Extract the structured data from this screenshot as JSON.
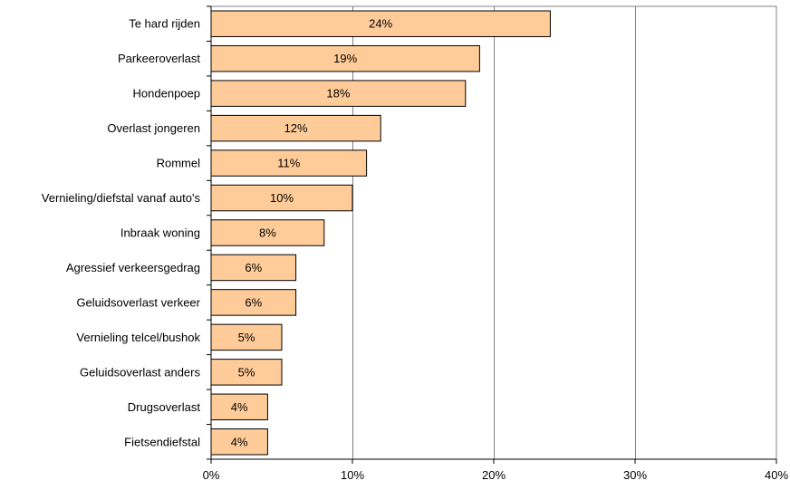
{
  "chart_data": {
    "type": "bar",
    "orientation": "horizontal",
    "categories": [
      "Te hard rijden",
      "Parkeeroverlast",
      "Hondenpoep",
      "Overlast jongeren",
      "Rommel",
      "Vernieling/diefstal vanaf auto's",
      "Inbraak woning",
      "Agressief verkeersgedrag",
      "Geluidsoverlast verkeer",
      "Vernieling telcel/bushok",
      "Geluidsoverlast anders",
      "Drugsoverlast",
      "Fietsendiefstal"
    ],
    "values": [
      24,
      19,
      18,
      12,
      11,
      10,
      8,
      6,
      6,
      5,
      5,
      4,
      4
    ],
    "data_labels": [
      "24%",
      "19%",
      "18%",
      "12%",
      "11%",
      "10%",
      "8%",
      "6%",
      "6%",
      "5%",
      "5%",
      "4%",
      "4%"
    ],
    "x_ticks": [
      0,
      10,
      20,
      30,
      40
    ],
    "x_tick_labels": [
      "0%",
      "10%",
      "20%",
      "30%",
      "40%"
    ],
    "xlim": [
      0,
      40
    ],
    "grid": true,
    "legend": "none",
    "title": "",
    "xlabel": "",
    "ylabel": ""
  },
  "colors": {
    "bar_fill": "#FFCC99",
    "bar_stroke": "#000000",
    "gridline": "#808080",
    "axis": "#000000"
  }
}
